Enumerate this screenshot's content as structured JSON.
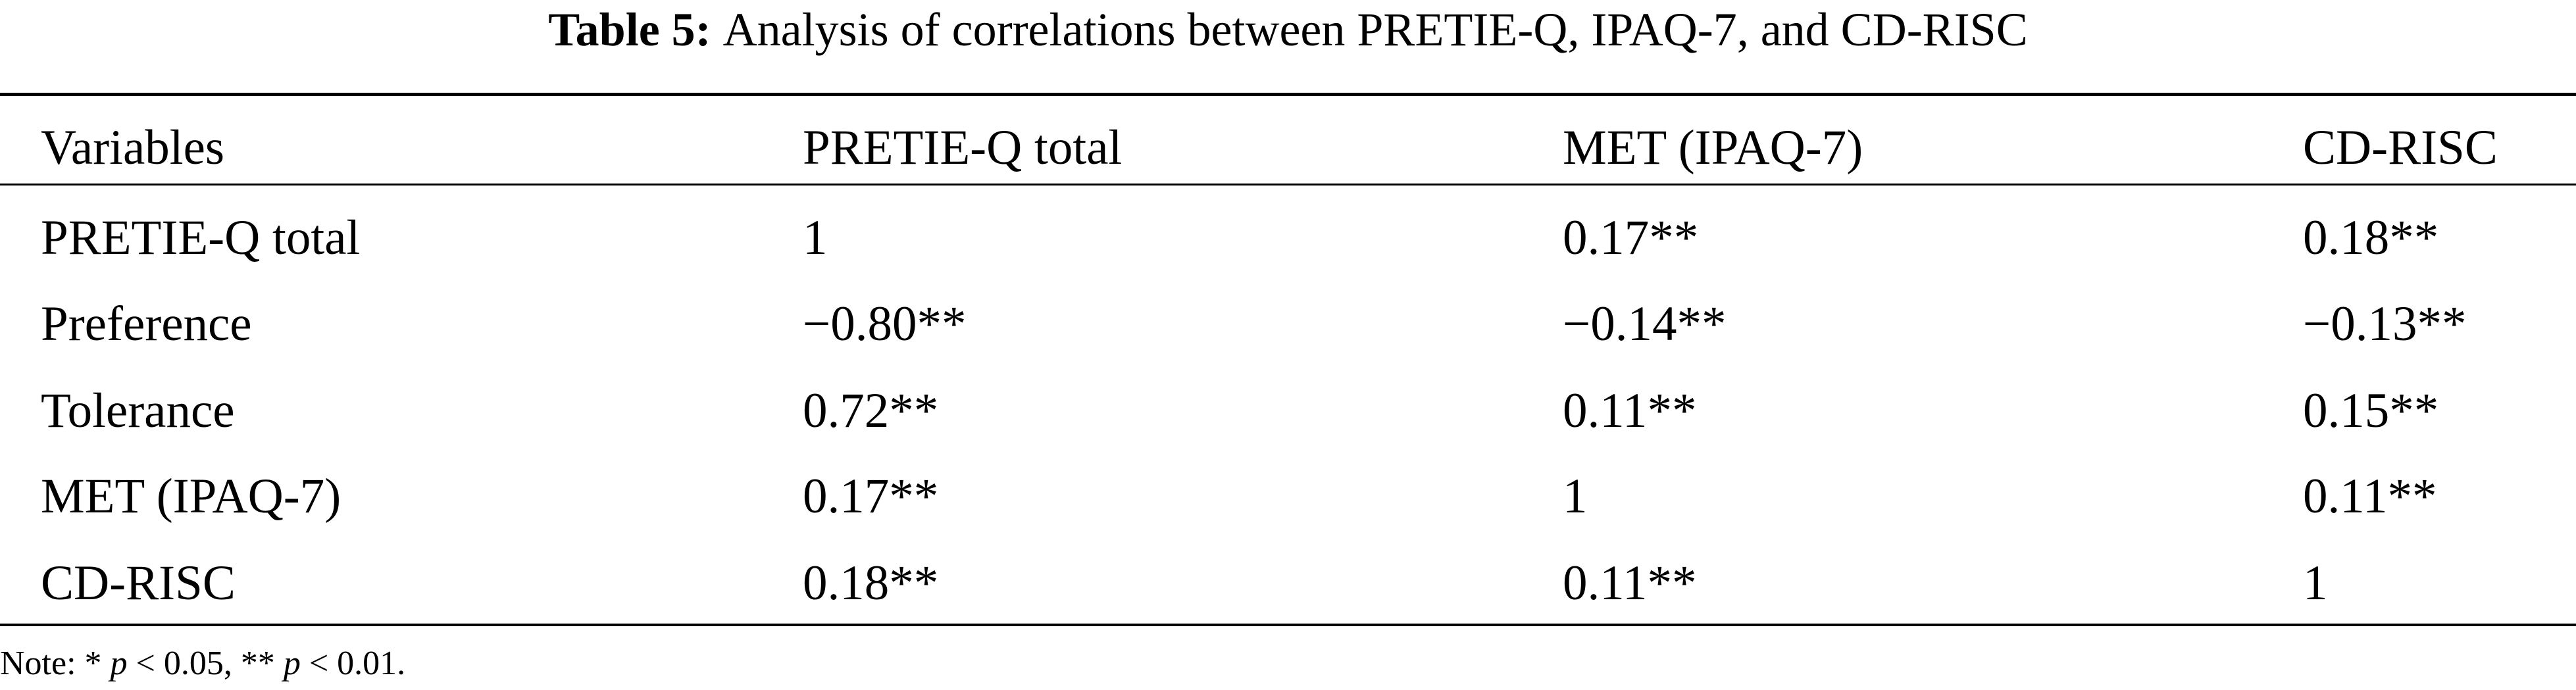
{
  "title": {
    "label": "Table 5:",
    "text": "Analysis of correlations between PRETIE-Q, IPAQ-7, and CD-RISC"
  },
  "table": {
    "header": [
      "Variables",
      "PRETIE-Q total",
      "MET (IPAQ-7)",
      "CD-RISC"
    ],
    "rows": [
      [
        "PRETIE-Q total",
        "1",
        "0.17**",
        "0.18**"
      ],
      [
        "Preference",
        "−0.80**",
        "−0.14**",
        "−0.13**"
      ],
      [
        "Tolerance",
        "0.72**",
        "0.11**",
        "0.15**"
      ],
      [
        "MET (IPAQ-7)",
        "0.17**",
        "1",
        "0.11**"
      ],
      [
        "CD-RISC",
        "0.18**",
        "0.11**",
        "1"
      ]
    ]
  },
  "note": [
    "Note: * ",
    "p",
    " < 0.05, ** ",
    "p",
    " < 0.01."
  ]
}
